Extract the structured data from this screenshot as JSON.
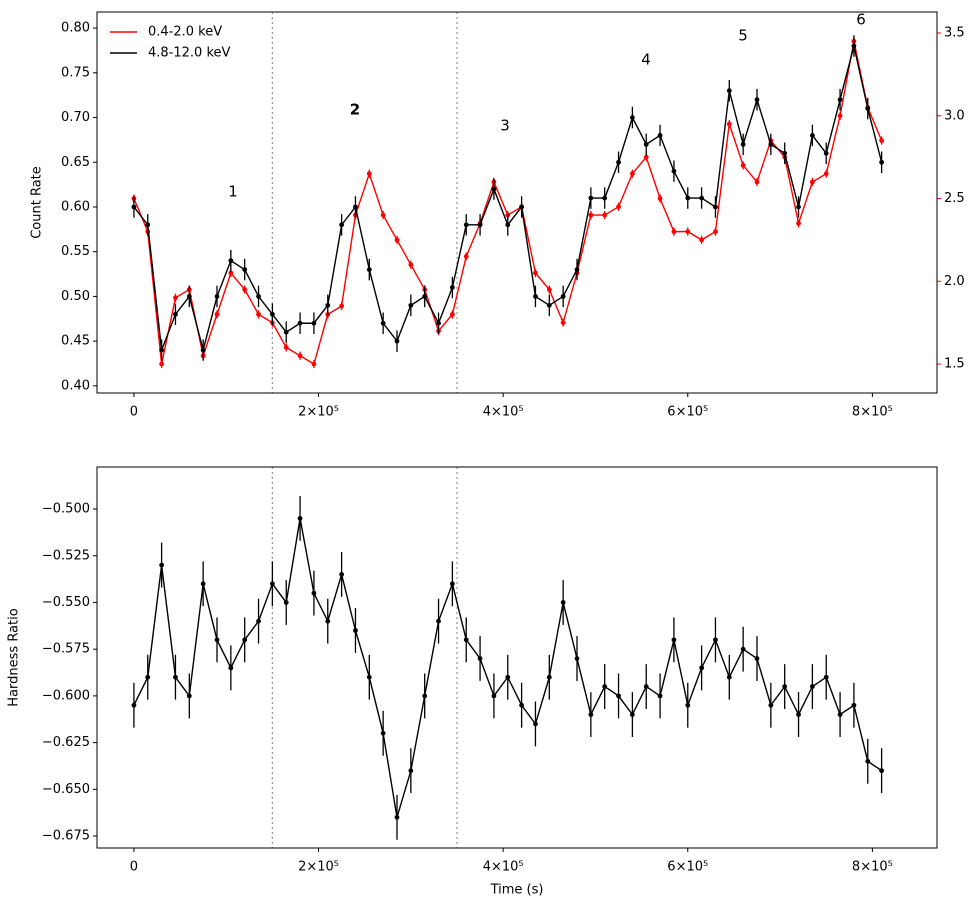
{
  "chart_data": [
    {
      "type": "line",
      "ylabel": "Count Rate",
      "x": [
        0,
        15000,
        30000,
        45000,
        60000,
        75000,
        90000,
        105000,
        120000,
        135000,
        150000,
        165000,
        180000,
        195000,
        210000,
        225000,
        240000,
        255000,
        270000,
        285000,
        300000,
        315000,
        330000,
        345000,
        360000,
        375000,
        390000,
        405000,
        420000,
        435000,
        450000,
        465000,
        480000,
        495000,
        510000,
        525000,
        540000,
        555000,
        570000,
        585000,
        600000,
        615000,
        630000,
        645000,
        660000,
        675000,
        690000,
        705000,
        720000,
        735000,
        750000,
        765000,
        780000,
        795000,
        810000
      ],
      "series": [
        {
          "name": "0.4-2.0 keV",
          "color": "#ff0000",
          "axis": "y2",
          "error": 0.025,
          "values": [
            2.5,
            2.3,
            1.5,
            1.9,
            1.95,
            1.55,
            1.8,
            2.05,
            1.95,
            1.8,
            1.75,
            1.6,
            1.55,
            1.5,
            1.8,
            1.85,
            2.4,
            2.65,
            2.4,
            2.25,
            2.1,
            1.95,
            1.7,
            1.8,
            2.15,
            2.35,
            2.6,
            2.4,
            2.45,
            2.05,
            1.95,
            1.75,
            2.05,
            2.4,
            2.4,
            2.45,
            2.65,
            2.75,
            2.5,
            2.3,
            2.3,
            2.25,
            2.3,
            2.95,
            2.7,
            2.6,
            2.85,
            2.75,
            2.35,
            2.6,
            2.65,
            3.0,
            3.45,
            3.05,
            2.85
          ]
        },
        {
          "name": "4.8-12.0 keV",
          "color": "#000000",
          "error": 0.012,
          "values": [
            0.6,
            0.58,
            0.44,
            0.48,
            0.5,
            0.44,
            0.5,
            0.54,
            0.53,
            0.5,
            0.48,
            0.46,
            0.47,
            0.47,
            0.49,
            0.58,
            0.6,
            0.53,
            0.47,
            0.45,
            0.49,
            0.5,
            0.47,
            0.51,
            0.58,
            0.58,
            0.62,
            0.58,
            0.6,
            0.5,
            0.49,
            0.5,
            0.53,
            0.61,
            0.61,
            0.65,
            0.7,
            0.67,
            0.68,
            0.64,
            0.61,
            0.61,
            0.6,
            0.73,
            0.67,
            0.72,
            0.67,
            0.66,
            0.6,
            0.68,
            0.66,
            0.72,
            0.78,
            0.71,
            0.65
          ]
        }
      ],
      "xlim": [
        -40000,
        870000
      ],
      "xticks": [
        0,
        {
          "value": 200000,
          "label": "2×10⁵"
        },
        {
          "value": 400000,
          "label": "4×10⁵"
        },
        {
          "value": 600000,
          "label": "6×10⁵"
        },
        {
          "value": 800000,
          "label": "8×10⁵"
        }
      ],
      "ylim": [
        0.392,
        0.818
      ],
      "yticks": [
        {
          "value": 0.4,
          "label": "0.40"
        },
        0.45,
        {
          "value": 0.5,
          "label": "0.50"
        },
        0.55,
        {
          "value": 0.6,
          "label": "0.60"
        },
        0.65,
        {
          "value": 0.7,
          "label": "0.70"
        },
        0.75,
        {
          "value": 0.8,
          "label": "0.80"
        }
      ],
      "y2lim": [
        1.325,
        3.627
      ],
      "y2ticks": [
        1.5,
        {
          "value": 2,
          "label": "2.0"
        },
        2.5,
        {
          "value": 3,
          "label": "3.0"
        },
        3.5
      ],
      "y2color": "#ff0000",
      "vlines": [
        150000,
        350000
      ],
      "legend": "upper left",
      "annotations": [
        {
          "text": "1",
          "color": "#1f2a8c"
        },
        {
          "text": "2",
          "color": "#0000cc",
          "bold": true
        },
        {
          "text": "3",
          "color": "#2a3a9c"
        },
        {
          "text": "4",
          "color": "#1f2a8c"
        },
        {
          "text": "5",
          "color": "#1f2a8c"
        },
        {
          "text": "6",
          "color": "#1f2a8c"
        }
      ]
    },
    {
      "type": "line",
      "ylabel": "Hardness Ratio",
      "xlabel": "Time (s)",
      "x": [
        0,
        15000,
        30000,
        45000,
        60000,
        75000,
        90000,
        105000,
        120000,
        135000,
        150000,
        165000,
        180000,
        195000,
        210000,
        225000,
        240000,
        255000,
        270000,
        285000,
        300000,
        315000,
        330000,
        345000,
        360000,
        375000,
        390000,
        405000,
        420000,
        435000,
        450000,
        465000,
        480000,
        495000,
        510000,
        525000,
        540000,
        555000,
        570000,
        585000,
        600000,
        615000,
        630000,
        645000,
        660000,
        675000,
        690000,
        705000,
        720000,
        735000,
        750000,
        765000,
        780000,
        795000,
        810000
      ],
      "series": [
        {
          "name": "Hardness Ratio",
          "color": "#000000",
          "error": 0.012,
          "values": [
            -0.605,
            -0.59,
            -0.53,
            -0.59,
            -0.6,
            -0.54,
            -0.57,
            -0.585,
            -0.57,
            -0.56,
            -0.54,
            -0.55,
            -0.505,
            -0.545,
            -0.56,
            -0.535,
            -0.565,
            -0.59,
            -0.62,
            -0.665,
            -0.64,
            -0.6,
            -0.56,
            -0.54,
            -0.57,
            -0.58,
            -0.6,
            -0.59,
            -0.605,
            -0.615,
            -0.59,
            -0.55,
            -0.58,
            -0.61,
            -0.595,
            -0.6,
            -0.61,
            -0.595,
            -0.6,
            -0.57,
            -0.605,
            -0.585,
            -0.57,
            -0.59,
            -0.575,
            -0.58,
            -0.605,
            -0.595,
            -0.61,
            -0.595,
            -0.59,
            -0.61,
            -0.605,
            -0.635,
            -0.64
          ]
        }
      ],
      "xlim": [
        -40000,
        870000
      ],
      "xticks": [
        0,
        {
          "value": 200000,
          "label": "2×10⁵"
        },
        {
          "value": 400000,
          "label": "4×10⁵"
        },
        {
          "value": 600000,
          "label": "6×10⁵"
        },
        {
          "value": 800000,
          "label": "8×10⁵"
        }
      ],
      "ylim": [
        -0.6814,
        -0.4775
      ],
      "yticks": [
        {
          "value": -0.675,
          "label": "−0.675"
        },
        {
          "value": -0.65,
          "label": "−0.650"
        },
        {
          "value": -0.625,
          "label": "−0.625"
        },
        {
          "value": -0.6,
          "label": "−0.600"
        },
        {
          "value": -0.575,
          "label": "−0.575"
        },
        {
          "value": -0.55,
          "label": "−0.550"
        },
        {
          "value": -0.525,
          "label": "−0.525"
        },
        {
          "value": -0.5,
          "label": "−0.500"
        }
      ],
      "vlines": [
        150000,
        350000
      ]
    }
  ]
}
